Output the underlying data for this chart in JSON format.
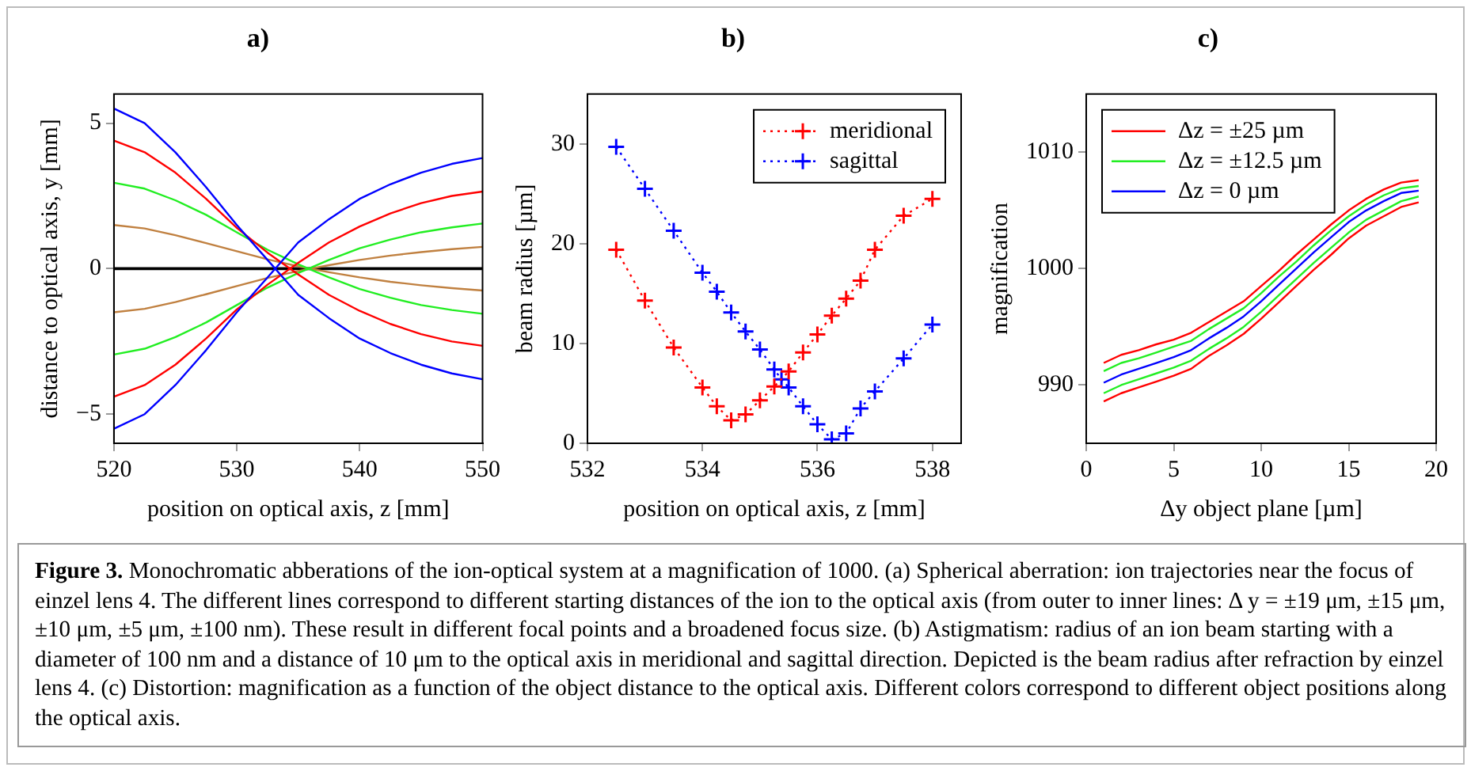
{
  "chart_data": [
    {
      "type": "line",
      "title": "a)",
      "xlabel": "position on optical axis, z [mm]",
      "ylabel": "distance to optical axis, y [mm]",
      "x": [
        520,
        522.5,
        525,
        527.5,
        530,
        532.5,
        535,
        537.5,
        540,
        542.5,
        545,
        547.5,
        550
      ],
      "xlim": [
        520,
        550
      ],
      "xticks": [
        520,
        530,
        540,
        550
      ],
      "ylim": [
        -6,
        6
      ],
      "yticks": [
        {
          "value": -5,
          "label": "−5"
        },
        0,
        5
      ],
      "grid": false,
      "legend": false,
      "series": [
        {
          "color": "#0000ff",
          "values": [
            5.5,
            5.0,
            4.0,
            2.8,
            1.5,
            0.3,
            -0.9,
            -1.7,
            -2.4,
            -2.9,
            -3.3,
            -3.6,
            -3.8
          ]
        },
        {
          "color": "#0000ff",
          "values": [
            -5.5,
            -5.0,
            -4.0,
            -2.8,
            -1.5,
            -0.3,
            0.9,
            1.7,
            2.4,
            2.9,
            3.3,
            3.6,
            3.8
          ]
        },
        {
          "color": "#ff0000",
          "values": [
            4.4,
            4.0,
            3.3,
            2.4,
            1.4,
            0.55,
            -0.2,
            -0.9,
            -1.45,
            -1.9,
            -2.25,
            -2.5,
            -2.65
          ]
        },
        {
          "color": "#ff0000",
          "values": [
            -4.4,
            -4.0,
            -3.3,
            -2.4,
            -1.4,
            -0.55,
            0.2,
            0.9,
            1.45,
            1.9,
            2.25,
            2.5,
            2.65
          ]
        },
        {
          "color": "#22ee22",
          "values": [
            2.95,
            2.75,
            2.35,
            1.85,
            1.25,
            0.65,
            0.15,
            -0.3,
            -0.7,
            -1.0,
            -1.25,
            -1.42,
            -1.55
          ]
        },
        {
          "color": "#22ee22",
          "values": [
            -2.95,
            -2.75,
            -2.35,
            -1.85,
            -1.25,
            -0.65,
            -0.15,
            0.3,
            0.7,
            1.0,
            1.25,
            1.42,
            1.55
          ]
        },
        {
          "color": "#c08040",
          "values": [
            1.5,
            1.38,
            1.15,
            0.88,
            0.6,
            0.32,
            0.08,
            -0.12,
            -0.3,
            -0.45,
            -0.57,
            -0.67,
            -0.75
          ]
        },
        {
          "color": "#c08040",
          "values": [
            -1.5,
            -1.38,
            -1.15,
            -0.88,
            -0.6,
            -0.32,
            -0.08,
            0.12,
            0.3,
            0.45,
            0.57,
            0.67,
            0.75
          ]
        },
        {
          "color": "#000000",
          "values": [
            0,
            0,
            0,
            0,
            0,
            0,
            0,
            0,
            0,
            0,
            0,
            0,
            0
          ]
        }
      ]
    },
    {
      "type": "line",
      "title": "b)",
      "xlabel": "position on optical axis, z [mm]",
      "ylabel": "beam radius [µm]",
      "x": [
        532.5,
        533,
        533.5,
        534,
        534.25,
        534.5,
        534.75,
        535,
        535.25,
        535.375,
        535.5,
        535.75,
        536,
        536.25,
        536.5,
        536.75,
        537,
        537.5,
        538
      ],
      "xlim": [
        532,
        538.5
      ],
      "xticks": [
        532,
        534,
        536,
        538
      ],
      "ylim": [
        0,
        35
      ],
      "yticks": [
        0,
        10,
        20,
        30
      ],
      "grid": false,
      "legend": "top right",
      "marker": "cross",
      "line_style": "dotted",
      "series": [
        {
          "name": "meridional",
          "color": "#ff0000",
          "x": [
            532.5,
            533,
            533.5,
            534,
            534.25,
            534.5,
            534.75,
            535,
            535.25,
            535.5,
            535.75,
            536,
            536.25,
            536.5,
            536.75,
            537,
            537.5,
            538
          ],
          "values": [
            19.4,
            14.3,
            9.6,
            5.6,
            3.7,
            2.3,
            2.9,
            4.3,
            5.7,
            7.2,
            9.1,
            10.9,
            12.8,
            14.5,
            16.3,
            19.4,
            22.8,
            24.5
          ]
        },
        {
          "name": "sagittal",
          "color": "#0000ff",
          "values": [
            29.7,
            25.5,
            21.3,
            17.1,
            15.2,
            13.1,
            11.2,
            9.4,
            7.4,
            6.4,
            5.6,
            3.7,
            1.9,
            0.4,
            1.0,
            3.5,
            5.2,
            8.5,
            11.9
          ]
        }
      ]
    },
    {
      "type": "line",
      "title": "c)",
      "xlabel": "Δy object plane [µm]",
      "ylabel": "magnification",
      "x": [
        1,
        2,
        3,
        4,
        5,
        6,
        7,
        8,
        9,
        10,
        11,
        12,
        13,
        14,
        15,
        16,
        17,
        18,
        19
      ],
      "xlim": [
        0,
        20
      ],
      "xticks": [
        0,
        5,
        10,
        15,
        20
      ],
      "ylim": [
        985,
        1015
      ],
      "yticks": [
        990,
        1000,
        1010
      ],
      "grid": false,
      "legend": "top left",
      "series": [
        {
          "name": "Δz = ±25 µm",
          "color": "#ff0000",
          "values": [
            991.9,
            992.6,
            993.0,
            993.5,
            993.9,
            994.5,
            995.4,
            996.3,
            997.2,
            998.5,
            999.8,
            1001.2,
            1002.5,
            1003.8,
            1005.0,
            1006.0,
            1006.8,
            1007.4,
            1007.6
          ]
        },
        {
          "name": "Δz = ±12.5 µm",
          "color": "#22ee22",
          "values": [
            991.2,
            991.9,
            992.3,
            992.8,
            993.3,
            993.8,
            994.8,
            995.7,
            996.6,
            997.9,
            999.3,
            1000.6,
            1002.0,
            1003.3,
            1004.5,
            1005.5,
            1006.3,
            1006.9,
            1007.1
          ]
        },
        {
          "name": "Δz = 0 µm",
          "color": "#0000ff",
          "values": [
            990.2,
            990.9,
            991.4,
            991.9,
            992.4,
            993.0,
            994.0,
            994.9,
            995.9,
            997.2,
            998.6,
            1000.0,
            1001.4,
            1002.7,
            1004.0,
            1005.0,
            1005.8,
            1006.5,
            1006.7
          ]
        },
        {
          "color": "#22ee22",
          "values": [
            989.3,
            990.0,
            990.5,
            991.0,
            991.5,
            992.1,
            993.1,
            994.0,
            995.0,
            996.3,
            997.7,
            999.1,
            1000.5,
            1001.8,
            1003.1,
            1004.2,
            1005.0,
            1005.8,
            1006.2
          ]
        },
        {
          "color": "#ff0000",
          "values": [
            988.6,
            989.3,
            989.8,
            990.3,
            990.8,
            991.4,
            992.5,
            993.4,
            994.4,
            995.7,
            997.1,
            998.5,
            999.9,
            1001.2,
            1002.6,
            1003.7,
            1004.5,
            1005.3,
            1005.7
          ]
        }
      ]
    },
    {
      "type": "other",
      "annotations": [
        "Figure 3.",
        "Monochromatic abberations of the ion-optical system at a magnification of 1000. (a) Spherical aberration: ion trajectories near the focus of einzel lens 4. The different lines correspond to different starting distances of the ion to the optical axis (from outer to inner lines: Δ y = ±19 μm, ±15 μm, ±10 μm, ±5 μm, ±100 nm). These result in different focal points and a broadened focus size. (b) Astigmatism: radius of an ion beam starting with a diameter of 100 nm and a distance of 10 μm to the optical axis in meridional and sagittal direction. Depicted is the beam radius after refraction by einzel lens 4. (c) Distortion: magnification as a function of the object distance to the optical axis. Different colors correspond to different object positions along the optical axis."
      ]
    }
  ]
}
